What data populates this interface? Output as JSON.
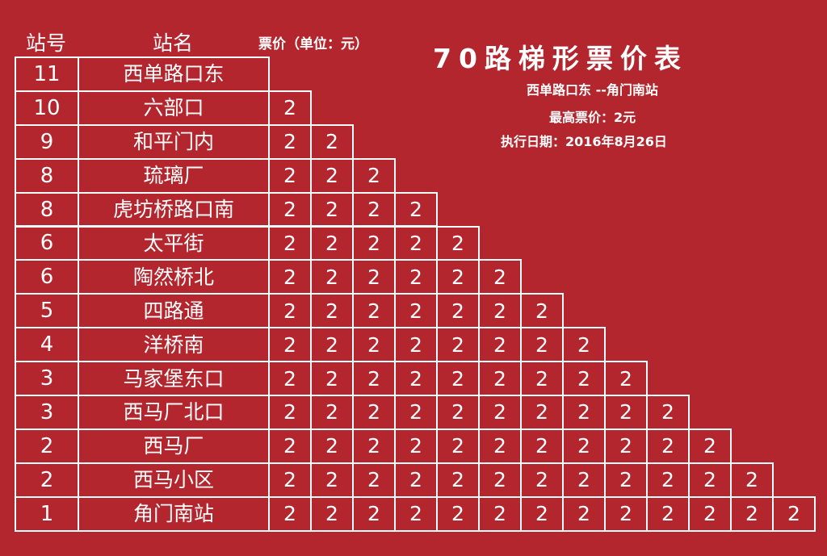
{
  "header": {
    "station_no_label": "站号",
    "station_name_label": "站名",
    "price_label": "票价（单位：元）"
  },
  "title": "70路梯形票价表",
  "route": "西单路口东 --角门南站",
  "max_fare": "最高票价：2元",
  "effective_date": "执行日期：2016年8月26日",
  "stations": [
    {
      "no": "11",
      "name": "西单路口东",
      "fares": []
    },
    {
      "no": "10",
      "name": "六部口",
      "fares": [
        "2"
      ]
    },
    {
      "no": "9",
      "name": "和平门内",
      "fares": [
        "2",
        "2"
      ]
    },
    {
      "no": "8",
      "name": "琉璃厂",
      "fares": [
        "2",
        "2",
        "2"
      ]
    },
    {
      "no": "8",
      "name": "虎坊桥路口南",
      "fares": [
        "2",
        "2",
        "2",
        "2"
      ]
    },
    {
      "no": "6",
      "name": "太平街",
      "fares": [
        "2",
        "2",
        "2",
        "2",
        "2"
      ]
    },
    {
      "no": "6",
      "name": "陶然桥北",
      "fares": [
        "2",
        "2",
        "2",
        "2",
        "2",
        "2"
      ]
    },
    {
      "no": "5",
      "name": "四路通",
      "fares": [
        "2",
        "2",
        "2",
        "2",
        "2",
        "2",
        "2"
      ]
    },
    {
      "no": "4",
      "name": "洋桥南",
      "fares": [
        "2",
        "2",
        "2",
        "2",
        "2",
        "2",
        "2",
        "2"
      ]
    },
    {
      "no": "3",
      "name": "马家堡东口",
      "fares": [
        "2",
        "2",
        "2",
        "2",
        "2",
        "2",
        "2",
        "2",
        "2"
      ]
    },
    {
      "no": "3",
      "name": "西马厂北口",
      "fares": [
        "2",
        "2",
        "2",
        "2",
        "2",
        "2",
        "2",
        "2",
        "2",
        "2"
      ]
    },
    {
      "no": "2",
      "name": "西马厂",
      "fares": [
        "2",
        "2",
        "2",
        "2",
        "2",
        "2",
        "2",
        "2",
        "2",
        "2",
        "2"
      ]
    },
    {
      "no": "2",
      "name": "西马小区",
      "fares": [
        "2",
        "2",
        "2",
        "2",
        "2",
        "2",
        "2",
        "2",
        "2",
        "2",
        "2",
        "2"
      ]
    },
    {
      "no": "1",
      "name": "角门南站",
      "fares": [
        "2",
        "2",
        "2",
        "2",
        "2",
        "2",
        "2",
        "2",
        "2",
        "2",
        "2",
        "2",
        "2"
      ]
    }
  ]
}
